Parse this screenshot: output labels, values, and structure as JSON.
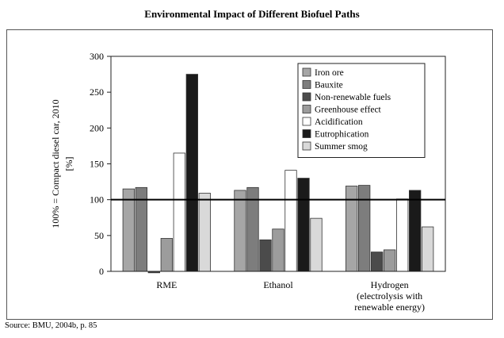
{
  "chart_data": {
    "type": "bar",
    "title": "Environmental Impact of Different Biofuel Paths",
    "ylabel_lines": [
      "100% = Compact diesel car, 2010",
      "[%]"
    ],
    "categories": [
      [
        "RME"
      ],
      [
        "Ethanol"
      ],
      [
        "Hydrogen",
        "(electrolysis with",
        "renewable energy)"
      ]
    ],
    "ylim": [
      0,
      300
    ],
    "yticks": [
      0,
      50,
      100,
      150,
      200,
      250,
      300
    ],
    "reference_line": 100,
    "legend_position": "top-right",
    "series": [
      {
        "name": "Iron ore",
        "color": "#a6a6a6",
        "values": [
          115,
          113,
          119
        ]
      },
      {
        "name": "Bauxite",
        "color": "#7d7d7d",
        "values": [
          117,
          117,
          120
        ]
      },
      {
        "name": "Non-renewable fuels",
        "color": "#4b4b4b",
        "values": [
          -2,
          44,
          27
        ]
      },
      {
        "name": "Greenhouse effect",
        "color": "#9c9c9c",
        "values": [
          46,
          59,
          30
        ]
      },
      {
        "name": "Acidification",
        "color": "#ffffff",
        "values": [
          165,
          141,
          101
        ]
      },
      {
        "name": "Eutrophication",
        "color": "#1a1a1a",
        "values": [
          275,
          130,
          113
        ]
      },
      {
        "name": "Summer smog",
        "color": "#d9d9d9",
        "values": [
          109,
          74,
          62
        ]
      }
    ]
  },
  "source": "Source: BMU, 2004b, p. 85"
}
